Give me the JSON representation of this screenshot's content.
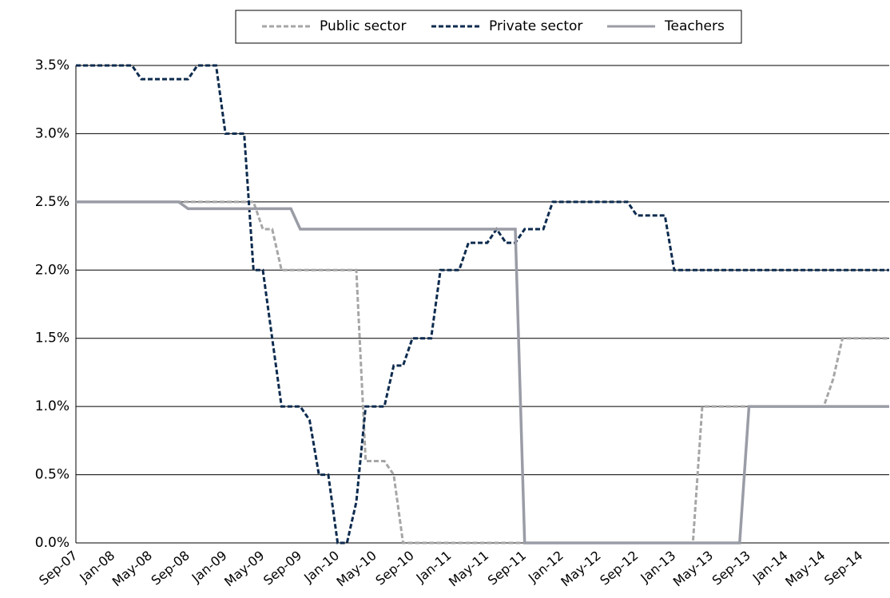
{
  "chart_data": {
    "type": "line",
    "categories": [
      "Sep-07",
      null,
      null,
      null,
      "Jan-08",
      null,
      null,
      null,
      "May-08",
      null,
      null,
      null,
      "Sep-08",
      null,
      null,
      null,
      "Jan-09",
      null,
      null,
      null,
      "May-09",
      null,
      null,
      null,
      "Sep-09",
      null,
      null,
      null,
      "Jan-10",
      null,
      null,
      null,
      "May-10",
      null,
      null,
      null,
      "Sep-10",
      null,
      null,
      null,
      "Jan-11",
      null,
      null,
      null,
      "May-11",
      null,
      null,
      null,
      "Sep-11",
      null,
      null,
      null,
      "Jan-12",
      null,
      null,
      null,
      "May-12",
      null,
      null,
      null,
      "Sep-12",
      null,
      null,
      null,
      "Jan-13",
      null,
      null,
      null,
      "May-13",
      null,
      null,
      null,
      "Sep-13",
      null,
      null,
      null,
      "Jan-14",
      null,
      null,
      null,
      "May-14",
      null,
      null,
      null,
      "Sep-14",
      null,
      null,
      null
    ],
    "series": [
      {
        "name": "Public sector",
        "color": "#a6a6a6",
        "dashed": true,
        "values": [
          2.5,
          2.5,
          2.5,
          2.5,
          2.5,
          2.5,
          2.5,
          2.5,
          2.5,
          2.5,
          2.5,
          2.5,
          2.5,
          2.5,
          2.5,
          2.5,
          2.5,
          2.5,
          2.5,
          2.5,
          2.3,
          2.3,
          2.0,
          2.0,
          2.0,
          2.0,
          2.0,
          2.0,
          2.0,
          2.0,
          2.0,
          0.6,
          0.6,
          0.6,
          0.5,
          0,
          0,
          0,
          0,
          0,
          0,
          0,
          0,
          0,
          0,
          0,
          0,
          0,
          0,
          0,
          0,
          0,
          0,
          0,
          0,
          0,
          0,
          0,
          0,
          0,
          0,
          0,
          0,
          0,
          0,
          0,
          0,
          1.0,
          1.0,
          1.0,
          1.0,
          1.0,
          1.0,
          1.0,
          1.0,
          1.0,
          1.0,
          1.0,
          1.0,
          1.0,
          1.0,
          1.2,
          1.5,
          1.5,
          1.5,
          1.5,
          1.5,
          1.5
        ]
      },
      {
        "name": "Private sector",
        "color": "#0d2b4e",
        "dashed": true,
        "values": [
          3.5,
          3.5,
          3.5,
          3.5,
          3.5,
          3.5,
          3.5,
          3.4,
          3.4,
          3.4,
          3.4,
          3.4,
          3.4,
          3.5,
          3.5,
          3.5,
          3.0,
          3.0,
          3.0,
          2.0,
          2.0,
          1.5,
          1.0,
          1.0,
          1.0,
          0.9,
          0.5,
          0.5,
          0,
          0,
          0.3,
          1.0,
          1.0,
          1.0,
          1.3,
          1.3,
          1.5,
          1.5,
          1.5,
          2.0,
          2.0,
          2.0,
          2.2,
          2.2,
          2.2,
          2.3,
          2.2,
          2.2,
          2.3,
          2.3,
          2.3,
          2.5,
          2.5,
          2.5,
          2.5,
          2.5,
          2.5,
          2.5,
          2.5,
          2.5,
          2.4,
          2.4,
          2.4,
          2.4,
          2.0,
          2.0,
          2.0,
          2.0,
          2.0,
          2.0,
          2.0,
          2.0,
          2.0,
          2.0,
          2.0,
          2.0,
          2.0,
          2.0,
          2.0,
          2.0,
          2.0,
          2.0,
          2.0,
          2.0,
          2.0,
          2.0,
          2.0,
          2.0
        ]
      },
      {
        "name": "Teachers",
        "color": "#9a9ca6",
        "dashed": false,
        "values": [
          2.5,
          2.5,
          2.5,
          2.5,
          2.5,
          2.5,
          2.5,
          2.5,
          2.5,
          2.5,
          2.5,
          2.5,
          2.45,
          2.45,
          2.45,
          2.45,
          2.45,
          2.45,
          2.45,
          2.45,
          2.45,
          2.45,
          2.45,
          2.45,
          2.3,
          2.3,
          2.3,
          2.3,
          2.3,
          2.3,
          2.3,
          2.3,
          2.3,
          2.3,
          2.3,
          2.3,
          2.3,
          2.3,
          2.3,
          2.3,
          2.3,
          2.3,
          2.3,
          2.3,
          2.3,
          2.3,
          2.3,
          2.3,
          0,
          0,
          0,
          0,
          0,
          0,
          0,
          0,
          0,
          0,
          0,
          0,
          0,
          0,
          0,
          0,
          0,
          0,
          0,
          0,
          0,
          0,
          0,
          0,
          1.0,
          1.0,
          1.0,
          1.0,
          1.0,
          1.0,
          1.0,
          1.0,
          1.0,
          1.0,
          1.0,
          1.0,
          1.0,
          1.0,
          1.0,
          1.0
        ]
      }
    ],
    "ylim": [
      0,
      3.5
    ],
    "yticks": [
      {
        "value": 0,
        "label": "0.0%"
      },
      {
        "value": 0.5,
        "label": "0.5%"
      },
      {
        "value": 1.0,
        "label": "1.0%"
      },
      {
        "value": 1.5,
        "label": "1.5%"
      },
      {
        "value": 2.0,
        "label": "2.0%"
      },
      {
        "value": 2.5,
        "label": "2.5%"
      },
      {
        "value": 3.0,
        "label": "3.0%"
      },
      {
        "value": 3.5,
        "label": "3.5%"
      }
    ],
    "grid": true,
    "legend": "top"
  }
}
